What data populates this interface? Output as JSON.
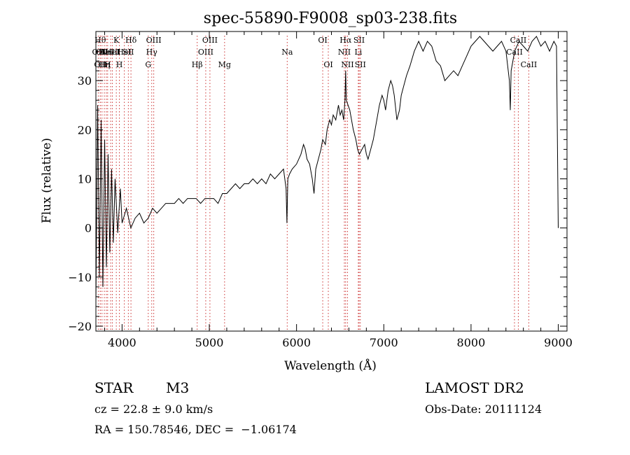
{
  "chart_data": {
    "type": "line",
    "title": "spec-55890-F9008_sp03-238.fits",
    "xlabel": "Wavelength (Å)",
    "ylabel": "Flux (relative)",
    "xlim": [
      3700,
      9100
    ],
    "ylim": [
      -21,
      40
    ],
    "xticks": [
      4000,
      5000,
      6000,
      7000,
      8000,
      9000
    ],
    "yticks": [
      -20,
      -10,
      0,
      10,
      20,
      30
    ],
    "grid": false,
    "line_color": "#000000",
    "marker_color": "#cc3333",
    "series": [
      {
        "x": [
          3700,
          3720,
          3740,
          3760,
          3780,
          3800,
          3820,
          3840,
          3860,
          3880,
          3900,
          3920,
          3950,
          3980,
          4000,
          4050,
          4100,
          4150,
          4200,
          4250,
          4300,
          4350,
          4400,
          4450,
          4500,
          4550,
          4600,
          4650,
          4700,
          4750,
          4800,
          4850,
          4900,
          4950,
          5000,
          5050,
          5100,
          5150,
          5200,
          5250,
          5300,
          5350,
          5400,
          5450,
          5500,
          5550,
          5600,
          5650,
          5700,
          5750,
          5800,
          5850,
          5880,
          5890,
          5900,
          5920,
          5950,
          6000,
          6050,
          6080,
          6100,
          6120,
          6150,
          6180,
          6200,
          6220,
          6250,
          6280,
          6300,
          6330,
          6350,
          6380,
          6400,
          6420,
          6450,
          6480,
          6500,
          6520,
          6540,
          6555,
          6563,
          6570,
          6590,
          6610,
          6630,
          6650,
          6680,
          6700,
          6720,
          6750,
          6780,
          6800,
          6820,
          6850,
          6880,
          6900,
          6920,
          6950,
          6980,
          7000,
          7020,
          7050,
          7080,
          7100,
          7120,
          7150,
          7180,
          7200,
          7230,
          7260,
          7300,
          7350,
          7400,
          7450,
          7500,
          7550,
          7600,
          7650,
          7700,
          7750,
          7800,
          7850,
          7900,
          7950,
          8000,
          8050,
          8100,
          8150,
          8200,
          8250,
          8300,
          8350,
          8400,
          8440,
          8450,
          8460,
          8500,
          8550,
          8600,
          8650,
          8700,
          8750,
          8800,
          8850,
          8900,
          8950,
          8980,
          9000
        ],
        "y": [
          -15,
          25,
          -10,
          22,
          -12,
          18,
          -8,
          15,
          -5,
          12,
          -3,
          10,
          -1,
          8,
          1,
          4,
          0,
          2,
          3,
          1,
          2,
          4,
          3,
          4,
          5,
          5,
          5,
          6,
          5,
          6,
          6,
          6,
          5,
          6,
          6,
          6,
          5,
          7,
          7,
          8,
          9,
          8,
          9,
          9,
          10,
          9,
          10,
          9,
          11,
          10,
          11,
          12,
          8,
          1,
          10,
          11,
          12,
          13,
          15,
          17,
          16,
          14,
          13,
          10,
          7,
          12,
          14,
          16,
          18,
          17,
          20,
          22,
          21,
          23,
          22,
          25,
          23,
          24,
          22,
          26,
          32,
          26,
          25,
          24,
          22,
          20,
          18,
          16,
          15,
          16,
          17,
          15,
          14,
          16,
          18,
          20,
          22,
          25,
          27,
          26,
          24,
          28,
          30,
          29,
          27,
          22,
          24,
          27,
          29,
          31,
          33,
          36,
          38,
          36,
          38,
          37,
          34,
          33,
          30,
          31,
          32,
          31,
          33,
          35,
          37,
          38,
          39,
          38,
          37,
          36,
          37,
          38,
          36,
          30,
          24,
          32,
          36,
          38,
          37,
          36,
          38,
          39,
          37,
          38,
          36,
          38,
          37,
          0
        ]
      }
    ],
    "lines": [
      {
        "x": 3727,
        "row": 1,
        "label": "OII"
      },
      {
        "x": 3750,
        "row": 0,
        "label": "Hθ"
      },
      {
        "x": 3750,
        "row": 2,
        "label": "OII"
      },
      {
        "x": 3770,
        "row": 1,
        "label": "OII"
      },
      {
        "x": 3797,
        "row": 2,
        "label": "Hη"
      },
      {
        "x": 3820,
        "row": 1,
        "label": "HeI"
      },
      {
        "x": 3835,
        "row": 2,
        "label": "H"
      },
      {
        "x": 3869,
        "row": 1,
        "label": "NeIII"
      },
      {
        "x": 3889,
        "row": 1,
        "label": "HeI"
      },
      {
        "x": 3934,
        "row": 0,
        "label": "K"
      },
      {
        "x": 3969,
        "row": 2,
        "label": "H"
      },
      {
        "x": 4026,
        "row": 1,
        "label": "HeI"
      },
      {
        "x": 4072,
        "row": 1,
        "label": "SII"
      },
      {
        "x": 4102,
        "row": 0,
        "label": "Hδ"
      },
      {
        "x": 4300,
        "row": 2,
        "label": "G"
      },
      {
        "x": 4340,
        "row": 1,
        "label": "Hγ"
      },
      {
        "x": 4363,
        "row": 0,
        "label": "OIII"
      },
      {
        "x": 4861,
        "row": 2,
        "label": "Hβ"
      },
      {
        "x": 4959,
        "row": 1,
        "label": "OIII"
      },
      {
        "x": 5007,
        "row": 0,
        "label": "OIII"
      },
      {
        "x": 5175,
        "row": 2,
        "label": "Mg"
      },
      {
        "x": 5893,
        "row": 1,
        "label": "Na"
      },
      {
        "x": 6300,
        "row": 0,
        "label": "OI"
      },
      {
        "x": 6364,
        "row": 2,
        "label": "OI"
      },
      {
        "x": 6548,
        "row": 1,
        "label": "NII"
      },
      {
        "x": 6563,
        "row": 0,
        "label": "Hα"
      },
      {
        "x": 6584,
        "row": 2,
        "label": "NII"
      },
      {
        "x": 6708,
        "row": 1,
        "label": "Li"
      },
      {
        "x": 6717,
        "row": 0,
        "label": "SII"
      },
      {
        "x": 6731,
        "row": 2,
        "label": "SII"
      },
      {
        "x": 8498,
        "row": 1,
        "label": "CaII"
      },
      {
        "x": 8542,
        "row": 0,
        "label": "CaII"
      },
      {
        "x": 8662,
        "row": 2,
        "label": "CaII"
      }
    ]
  },
  "info": {
    "object_class": "STAR",
    "subclass": "M3",
    "survey": "LAMOST DR2",
    "cz": "cz = 22.8 ± 9.0 km/s",
    "obs_date": "Obs-Date: 20111124",
    "coords": "RA = 150.78546, DEC =  −1.06174"
  }
}
